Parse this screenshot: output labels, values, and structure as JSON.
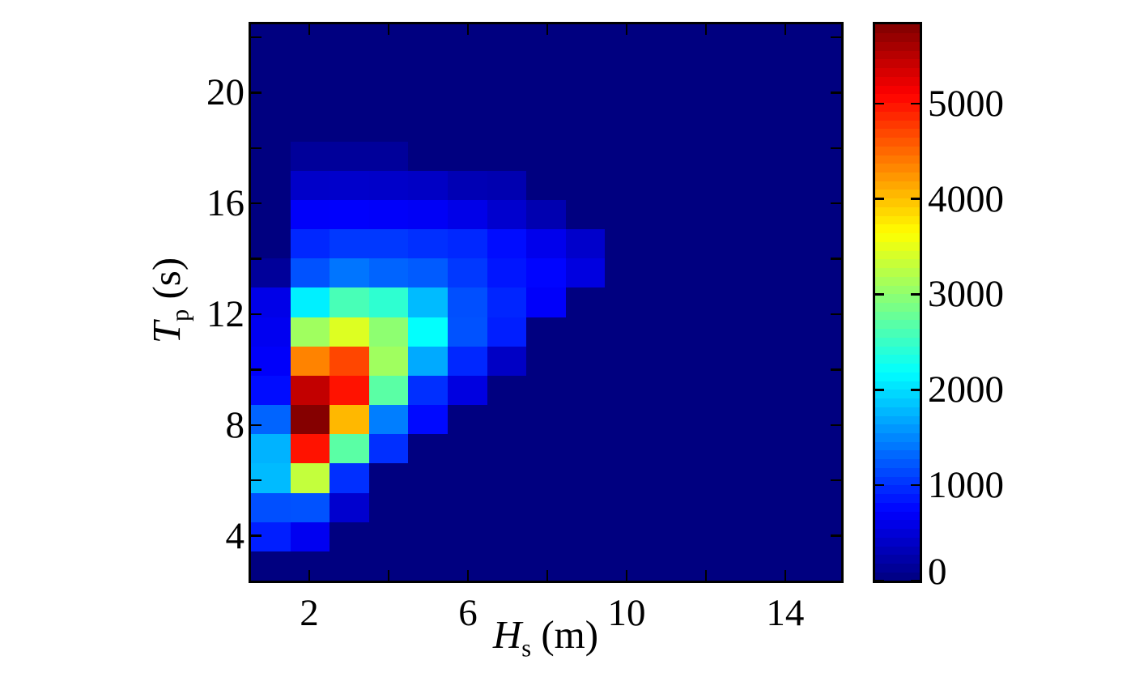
{
  "chart_data": {
    "type": "heatmap",
    "title": "",
    "xlabel_parts": {
      "variable": "H",
      "subscript": "s",
      "unit": " (m)"
    },
    "ylabel_parts": {
      "variable": "T",
      "subscript": "p",
      "unit": " (s)"
    },
    "x_axis": {
      "range": [
        0.53,
        15.41
      ],
      "ticks": [
        2,
        4,
        6,
        8,
        10,
        12,
        14
      ],
      "labeled_ticks": [
        2,
        6,
        10,
        14
      ]
    },
    "y_axis": {
      "range": [
        2.38,
        22.47
      ],
      "ticks": [
        4,
        6,
        8,
        10,
        12,
        14,
        16,
        18,
        20,
        22
      ],
      "labeled_ticks": [
        4,
        8,
        12,
        16,
        20
      ]
    },
    "hs_bin_centers": [
      1,
      2,
      3,
      4,
      5,
      6,
      7,
      8,
      9,
      10,
      11,
      12,
      13,
      14,
      15
    ],
    "tp_bin_centers": [
      21.9,
      20.9,
      19.8,
      18.8,
      17.7,
      16.7,
      15.6,
      14.5,
      13.5,
      12.4,
      11.4,
      10.3,
      9.3,
      8.2,
      7.1,
      6.1,
      5.0,
      4.0,
      2.9
    ],
    "values": [
      [
        0,
        0,
        0,
        0,
        0,
        0,
        0,
        0,
        0,
        0,
        0,
        0,
        0,
        0,
        0
      ],
      [
        0,
        0,
        0,
        0,
        0,
        0,
        0,
        0,
        0,
        0,
        0,
        0,
        0,
        0,
        0
      ],
      [
        0,
        0,
        0,
        0,
        0,
        0,
        0,
        0,
        0,
        0,
        0,
        0,
        0,
        0,
        0
      ],
      [
        0,
        0,
        0,
        0,
        0,
        0,
        0,
        0,
        0,
        0,
        0,
        0,
        0,
        0,
        0
      ],
      [
        0,
        150,
        150,
        150,
        0,
        0,
        0,
        0,
        0,
        0,
        0,
        0,
        0,
        0,
        0
      ],
      [
        0,
        420,
        430,
        420,
        400,
        300,
        280,
        0,
        0,
        0,
        0,
        0,
        0,
        0,
        0
      ],
      [
        0,
        700,
        720,
        700,
        680,
        600,
        450,
        280,
        0,
        0,
        0,
        0,
        0,
        0,
        0
      ],
      [
        0,
        950,
        1050,
        1050,
        1000,
        950,
        800,
        620,
        430,
        0,
        0,
        0,
        0,
        0,
        0
      ],
      [
        150,
        1200,
        1400,
        1300,
        1250,
        1050,
        850,
        750,
        550,
        0,
        0,
        0,
        0,
        0,
        0
      ],
      [
        600,
        2100,
        2600,
        2450,
        1800,
        1180,
        940,
        700,
        0,
        0,
        0,
        0,
        0,
        0,
        0
      ],
      [
        650,
        3100,
        3450,
        3000,
        2200,
        1200,
        900,
        0,
        0,
        0,
        0,
        0,
        0,
        0,
        0
      ],
      [
        700,
        4350,
        4700,
        3100,
        1700,
        950,
        400,
        0,
        0,
        0,
        0,
        0,
        0,
        0,
        0
      ],
      [
        800,
        5450,
        5000,
        2700,
        1000,
        550,
        0,
        0,
        0,
        0,
        0,
        0,
        0,
        0,
        0
      ],
      [
        1300,
        5800,
        4050,
        1450,
        780,
        0,
        0,
        0,
        0,
        0,
        0,
        0,
        0,
        0,
        0
      ],
      [
        1750,
        5000,
        2700,
        1000,
        0,
        0,
        0,
        0,
        0,
        0,
        0,
        0,
        0,
        0,
        0
      ],
      [
        1800,
        3300,
        1000,
        0,
        0,
        0,
        0,
        0,
        0,
        0,
        0,
        0,
        0,
        0,
        0
      ],
      [
        1180,
        1200,
        450,
        0,
        0,
        0,
        0,
        0,
        0,
        0,
        0,
        0,
        0,
        0,
        0
      ],
      [
        900,
        650,
        0,
        0,
        0,
        0,
        0,
        0,
        0,
        0,
        0,
        0,
        0,
        0,
        0
      ],
      [
        0,
        0,
        0,
        0,
        0,
        0,
        0,
        0,
        0,
        0,
        0,
        0,
        0,
        0,
        0
      ]
    ],
    "colorbar": {
      "vmin": 0,
      "vmax": 5830,
      "tick_values": [
        0,
        1000,
        2000,
        3000,
        4000,
        5000
      ],
      "tick_labels": [
        "0",
        "1000",
        "2000",
        "3000",
        "4000",
        "5000"
      ],
      "colormap": "jet",
      "levels": 64
    },
    "colors": {
      "zero_background": "#000080",
      "peak": "#850000"
    }
  }
}
